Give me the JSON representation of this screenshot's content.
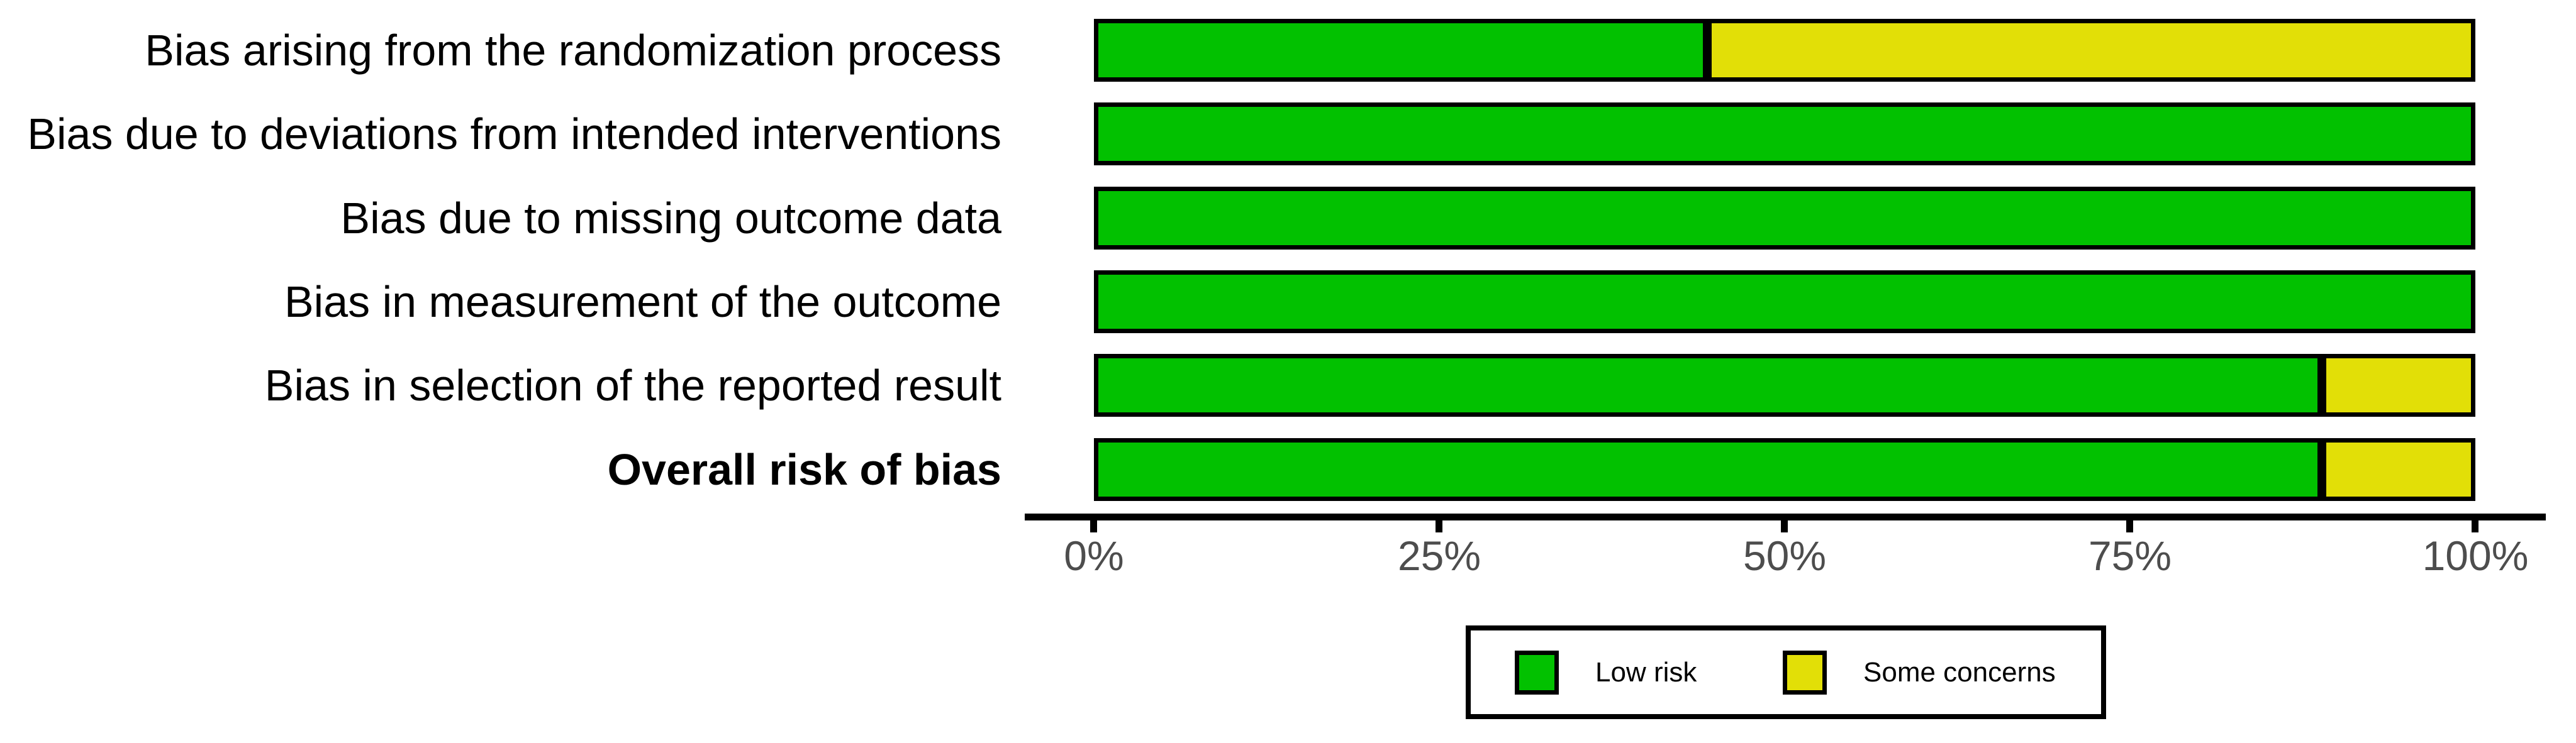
{
  "chart_data": {
    "type": "bar",
    "orientation": "horizontal",
    "stacked": true,
    "categories": [
      "Bias arising from the randomization process",
      "Bias due to deviations from intended interventions",
      "Bias due to missing outcome data",
      "Bias in measurement of the outcome",
      "Bias in selection of the reported result",
      "Overall risk of bias"
    ],
    "series": [
      {
        "name": "Low risk",
        "color": "#02C100",
        "values": [
          44.4,
          100,
          100,
          100,
          88.9,
          88.9
        ]
      },
      {
        "name": "Some concerns",
        "color": "#E2DF07",
        "values": [
          55.6,
          0,
          0,
          0,
          11.1,
          11.1
        ]
      }
    ],
    "x_ticks": [
      "0%",
      "25%",
      "50%",
      "75%",
      "100%"
    ],
    "xlim": [
      0,
      100
    ],
    "grid": "off",
    "legend_position": "bottom",
    "bar_border_color": "#000000",
    "axis_line_color": "#000000",
    "axis_text_color": "#4d4d4d",
    "label_text_color": "#000000",
    "background_color": "#ffffff"
  },
  "legend": {
    "items": [
      {
        "label": "Low risk",
        "color": "#02C100"
      },
      {
        "label": "Some concerns",
        "color": "#E2DF07"
      }
    ]
  }
}
